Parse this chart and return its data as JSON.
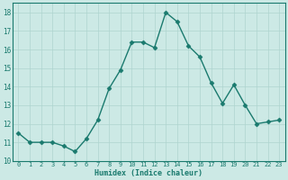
{
  "x": [
    0,
    1,
    2,
    3,
    4,
    5,
    6,
    7,
    8,
    9,
    10,
    11,
    12,
    13,
    14,
    15,
    16,
    17,
    18,
    19,
    20,
    21,
    22,
    23
  ],
  "y": [
    11.5,
    11.0,
    11.0,
    11.0,
    10.8,
    10.5,
    11.2,
    12.2,
    13.9,
    14.9,
    16.4,
    16.4,
    16.1,
    18.0,
    17.5,
    16.2,
    15.6,
    14.2,
    13.1,
    14.1,
    13.0,
    12.0,
    12.1,
    12.2
  ],
  "xlabel": "Humidex (Indice chaleur)",
  "line_color": "#1a7a6e",
  "marker": "D",
  "marker_size": 2.5,
  "bg_color": "#cce9e5",
  "grid_color": "#aed4cf",
  "tick_color": "#1a7a6e",
  "label_color": "#1a7a6e",
  "ylim": [
    10,
    18.5
  ],
  "yticks": [
    10,
    11,
    12,
    13,
    14,
    15,
    16,
    17,
    18
  ],
  "xlim": [
    -0.5,
    23.5
  ],
  "xticks": [
    0,
    1,
    2,
    3,
    4,
    5,
    6,
    7,
    8,
    9,
    10,
    11,
    12,
    13,
    14,
    15,
    16,
    17,
    18,
    19,
    20,
    21,
    22,
    23
  ]
}
